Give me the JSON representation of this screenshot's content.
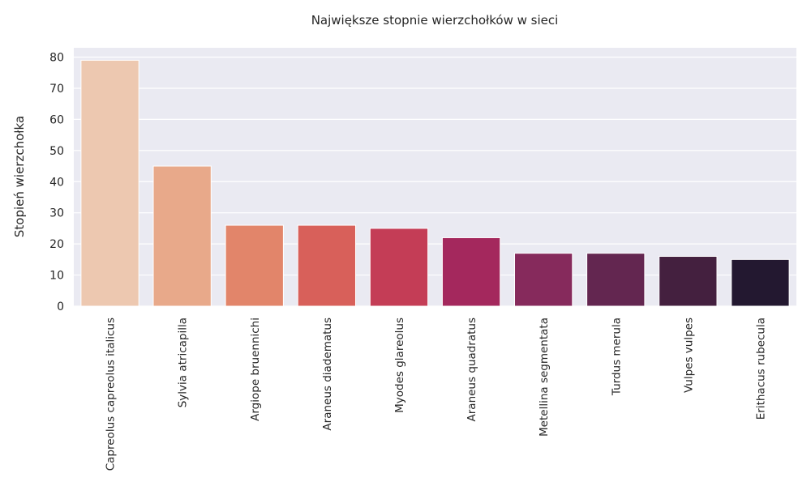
{
  "chart_data": {
    "type": "bar",
    "title": "Największe stopnie wierzchołków w sieci",
    "xlabel": "",
    "ylabel": "Stopień wierzchołka",
    "categories": [
      "Capreolus capreolus italicus",
      "Sylvia atricapilla",
      "Argiope bruennichi",
      "Araneus diadematus",
      "Myodes glareolus",
      "Araneus quadratus",
      "Metellina segmentata",
      "Turdus merula",
      "Vulpes vulpes",
      "Erithacus rubecula"
    ],
    "values": [
      79,
      45,
      26,
      26,
      25,
      22,
      17,
      17,
      16,
      15
    ],
    "ylim": [
      0,
      83
    ],
    "yticks": [
      0,
      10,
      20,
      30,
      40,
      50,
      60,
      70,
      80
    ],
    "grid": true,
    "legend": "none",
    "colors": [
      "#edc8b0",
      "#e8a98a",
      "#e2856a",
      "#d8605a",
      "#c43d56",
      "#a4285d",
      "#862a5c",
      "#632650",
      "#44203f",
      "#231830"
    ],
    "background": "#eaeaf2",
    "gridColor": "#ffffff"
  }
}
